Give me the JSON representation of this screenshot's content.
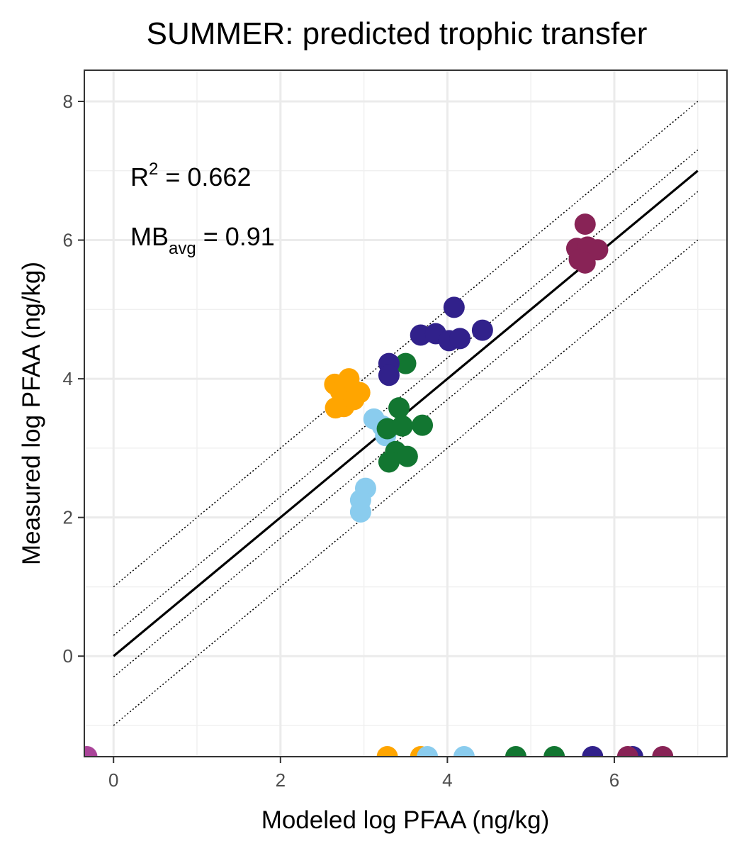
{
  "chart_data": {
    "type": "scatter",
    "title": "SUMMER: predicted trophic transfer",
    "xlabel": "Modeled log PFAA (ng/kg)",
    "ylabel": "Measured log PFAA (ng/kg)",
    "xlim": [
      -0.35,
      7.35
    ],
    "ylim": [
      -1.45,
      8.45
    ],
    "x_ticks": [
      0,
      2,
      4,
      6
    ],
    "y_ticks": [
      0,
      2,
      4,
      6,
      8
    ],
    "x_tick_labels": [
      "0",
      "2",
      "4",
      "6"
    ],
    "y_tick_labels": [
      "0",
      "2",
      "4",
      "6",
      "8"
    ],
    "grid": true,
    "annotations": {
      "r2_base": "R",
      "r2_sup": "2",
      "r2_value": " = 0.662",
      "mb_base": "MB",
      "mb_sub": "avg",
      "mb_value": " = 0.91"
    },
    "reference_lines": {
      "one_to_one": {
        "x": [
          0,
          7
        ],
        "y": [
          0,
          7
        ]
      },
      "offsets": [
        1,
        0.3,
        -0.3,
        -1
      ],
      "x_range": [
        0,
        7
      ]
    },
    "series": [
      {
        "color": "#FFA500",
        "points": [
          [
            2.65,
            3.92
          ],
          [
            2.82,
            4.0
          ],
          [
            2.72,
            3.82
          ],
          [
            2.95,
            3.8
          ],
          [
            2.78,
            3.72
          ],
          [
            2.66,
            3.58
          ],
          [
            2.76,
            3.6
          ],
          [
            2.88,
            3.7
          ]
        ]
      },
      {
        "color": "#8ACCEE",
        "points": [
          [
            3.12,
            3.42
          ],
          [
            3.22,
            3.32
          ],
          [
            3.26,
            3.18
          ],
          [
            3.02,
            2.42
          ],
          [
            2.96,
            2.25
          ],
          [
            2.96,
            2.08
          ]
        ]
      },
      {
        "color": "#127631",
        "points": [
          [
            3.5,
            4.22
          ],
          [
            3.42,
            3.58
          ],
          [
            3.46,
            3.32
          ],
          [
            3.7,
            3.33
          ],
          [
            3.28,
            3.28
          ],
          [
            3.38,
            2.95
          ],
          [
            3.52,
            2.88
          ],
          [
            3.3,
            2.8
          ]
        ]
      },
      {
        "color": "#31218B",
        "points": [
          [
            3.3,
            4.22
          ],
          [
            3.3,
            4.05
          ],
          [
            3.68,
            4.63
          ],
          [
            3.86,
            4.65
          ],
          [
            4.08,
            5.03
          ],
          [
            4.02,
            4.55
          ],
          [
            4.15,
            4.58
          ],
          [
            4.42,
            4.7
          ]
        ]
      },
      {
        "color": "#882356",
        "points": [
          [
            5.65,
            6.23
          ],
          [
            5.55,
            5.88
          ],
          [
            5.68,
            5.9
          ],
          [
            5.8,
            5.86
          ],
          [
            5.58,
            5.72
          ],
          [
            5.65,
            5.67
          ]
        ]
      }
    ],
    "rug_x": [
      {
        "x": -0.32,
        "color": "#AA4499"
      },
      {
        "x": 3.28,
        "color": "#FFA500"
      },
      {
        "x": 3.68,
        "color": "#FFA500"
      },
      {
        "x": 3.76,
        "color": "#8ACCEE"
      },
      {
        "x": 4.2,
        "color": "#8ACCEE"
      },
      {
        "x": 4.82,
        "color": "#127631"
      },
      {
        "x": 5.28,
        "color": "#127631"
      },
      {
        "x": 5.74,
        "color": "#31218B"
      },
      {
        "x": 6.22,
        "color": "#31218B"
      },
      {
        "x": 6.16,
        "color": "#882356"
      },
      {
        "x": 6.58,
        "color": "#882356"
      }
    ]
  }
}
